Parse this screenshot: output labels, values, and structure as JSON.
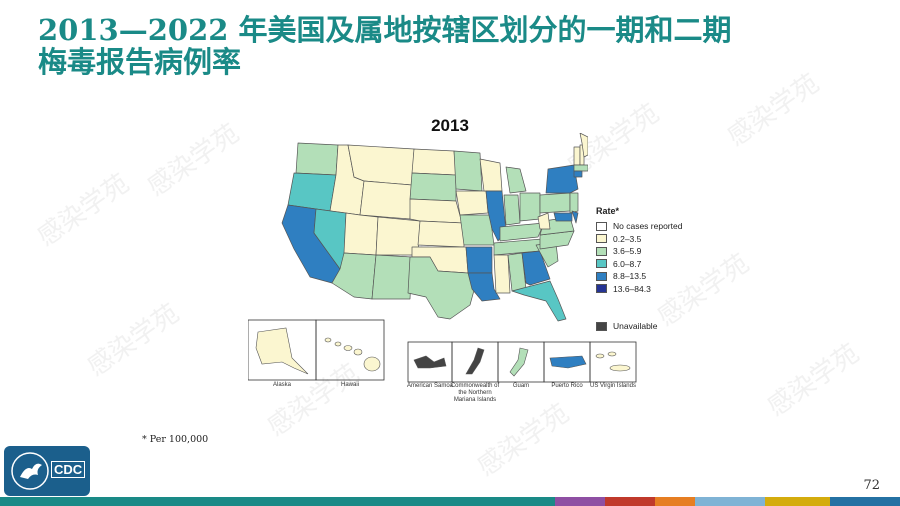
{
  "slide": {
    "title_line1": "2013—2022 年美国及属地按辖区划分的一期和二期",
    "title_line2": "梅毒报告病例率",
    "footnote": "* Per 100,000",
    "page_number": "72",
    "watermark_text": "感染学苑"
  },
  "map": {
    "year": "2013",
    "colors": {
      "no_cases": "#ffffff",
      "r1": "#fbf6d0",
      "r2": "#b3dfb8",
      "r3": "#58c6c4",
      "r4": "#2f7fc1",
      "r5": "#253494",
      "unavailable": "#444444",
      "border": "#555555"
    },
    "legend": {
      "title": "Rate*",
      "items": [
        {
          "label": "No cases reported",
          "color": "#ffffff"
        },
        {
          "label": "0.2–3.5",
          "color": "#fbf6d0"
        },
        {
          "label": "3.6–5.9",
          "color": "#b3dfb8"
        },
        {
          "label": "6.0–8.7",
          "color": "#58c6c4"
        },
        {
          "label": "8.8–13.5",
          "color": "#2f7fc1"
        },
        {
          "label": "13.6–84.3",
          "color": "#253494"
        }
      ],
      "unavailable_label": "Unavailable"
    },
    "insets": {
      "alaska": "Alaska",
      "hawaii": "Hawaii",
      "american_samoa": "American Samoa",
      "cnmi": "Commonwealth of the Northern Mariana Islands",
      "guam": "Guam",
      "puerto_rico": "Puerto Rico",
      "usvi": "US Virgin Islands"
    }
  },
  "logo": {
    "text": "CDC",
    "color": "#1b5f8c"
  },
  "footer_bar": [
    "#1a8a87",
    "#1a8a87",
    "#1a8a87",
    "#1a8a87",
    "#1a8a87",
    "#8e4fa3",
    "#c0392b",
    "#e67e22",
    "#7fb3d5",
    "#d4ac0d",
    "#2471a3"
  ]
}
